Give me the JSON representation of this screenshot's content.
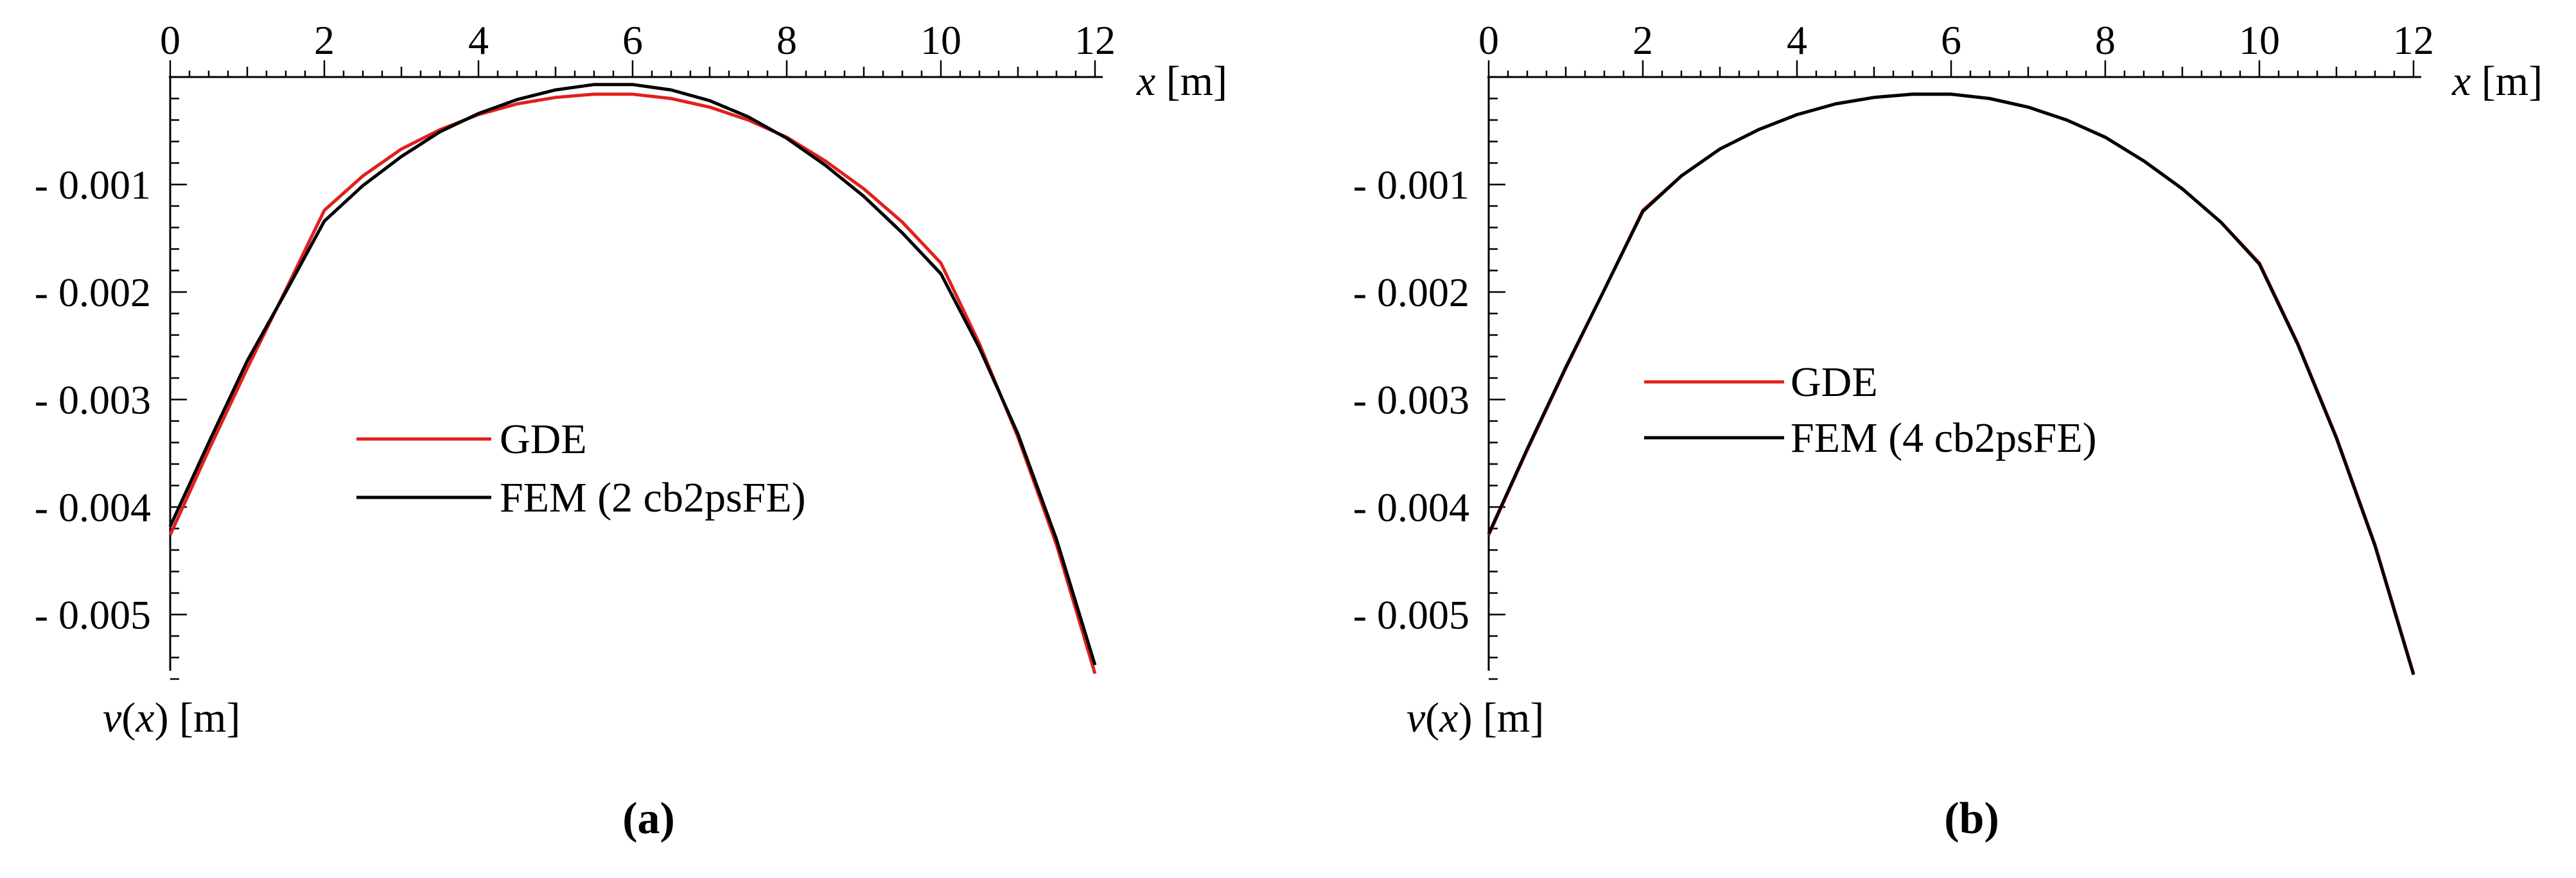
{
  "figure": {
    "captions": [
      "(a)",
      "(b)"
    ]
  },
  "chart_data": [
    {
      "type": "line",
      "panel": "(a)",
      "xlabel": "x [m]",
      "ylabel": "v(x) [m]",
      "xlim": [
        0,
        12
      ],
      "ylim": [
        -0.0057,
        0.0001
      ],
      "x_ticks": [
        0,
        2,
        4,
        6,
        8,
        10,
        12
      ],
      "x_tick_labels": [
        "0",
        "2",
        "4",
        "6",
        "8",
        "10",
        "12"
      ],
      "y_ticks": [
        -0.001,
        -0.002,
        -0.003,
        -0.004,
        -0.005
      ],
      "y_tick_labels": [
        "- 0.001",
        "- 0.002",
        "- 0.003",
        "- 0.004",
        "- 0.005"
      ],
      "legend_position": "center",
      "series": [
        {
          "name": "GDE",
          "color": "#e0201c",
          "x": [
            0,
            0.5,
            1,
            1.5,
            2,
            2.5,
            3,
            3.5,
            4,
            4.5,
            5,
            5.5,
            6,
            6.5,
            7,
            7.5,
            8,
            8.5,
            9,
            9.5,
            10,
            10.5,
            11,
            11.5,
            12
          ],
          "y": [
            -0.00426,
            -0.00347,
            -0.00271,
            -0.00198,
            -0.00124,
            -0.00092,
            -0.00067,
            -0.00049,
            -0.00035,
            -0.00025,
            -0.00019,
            -0.00016,
            -0.00016,
            -0.0002,
            -0.00028,
            -0.0004,
            -0.00056,
            -0.00078,
            -0.00104,
            -0.00135,
            -0.00173,
            -0.00248,
            -0.00335,
            -0.00435,
            -0.00555
          ]
        },
        {
          "name": "FEM (2 cb2psFE)",
          "color": "#000000",
          "x": [
            0,
            0.5,
            1,
            1.5,
            2,
            2.5,
            3,
            3.5,
            4,
            4.5,
            5,
            5.5,
            6,
            6.5,
            7,
            7.5,
            8,
            8.5,
            9,
            9.5,
            10,
            10.5,
            11,
            11.5,
            12
          ],
          "y": [
            -0.00418,
            -0.0034,
            -0.00264,
            -0.002,
            -0.00134,
            -0.00101,
            -0.00074,
            -0.00051,
            -0.00034,
            -0.00021,
            -0.00012,
            -7e-05,
            -7e-05,
            -0.00012,
            -0.00022,
            -0.00037,
            -0.00057,
            -0.00082,
            -0.00111,
            -0.00145,
            -0.00183,
            -0.00252,
            -0.00332,
            -0.0043,
            -0.00547
          ]
        }
      ]
    },
    {
      "type": "line",
      "panel": "(b)",
      "xlabel": "x [m]",
      "ylabel": "v(x) [m]",
      "xlim": [
        0,
        12
      ],
      "ylim": [
        -0.0057,
        0.0001
      ],
      "x_ticks": [
        0,
        2,
        4,
        6,
        8,
        10,
        12
      ],
      "x_tick_labels": [
        "0",
        "2",
        "4",
        "6",
        "8",
        "10",
        "12"
      ],
      "y_ticks": [
        -0.001,
        -0.002,
        -0.003,
        -0.004,
        -0.005
      ],
      "y_tick_labels": [
        "- 0.001",
        "- 0.002",
        "- 0.003",
        "- 0.004",
        "- 0.005"
      ],
      "legend_position": "center-left",
      "series": [
        {
          "name": "GDE",
          "color": "#e0201c",
          "x": [
            0,
            0.5,
            1,
            1.5,
            2,
            2.5,
            3,
            3.5,
            4,
            4.5,
            5,
            5.5,
            6,
            6.5,
            7,
            7.5,
            8,
            8.5,
            9,
            9.5,
            10,
            10.5,
            11,
            11.5,
            12
          ],
          "y": [
            -0.00426,
            -0.00347,
            -0.00271,
            -0.00198,
            -0.00124,
            -0.00092,
            -0.00067,
            -0.00049,
            -0.00035,
            -0.00025,
            -0.00019,
            -0.00016,
            -0.00016,
            -0.0002,
            -0.00028,
            -0.0004,
            -0.00056,
            -0.00078,
            -0.00104,
            -0.00135,
            -0.00173,
            -0.00248,
            -0.00335,
            -0.00435,
            -0.00555
          ]
        },
        {
          "name": "FEM (4 cb2psFE)",
          "color": "#000000",
          "x": [
            0,
            0.5,
            1,
            1.5,
            2,
            2.5,
            3,
            3.5,
            4,
            4.5,
            5,
            5.5,
            6,
            6.5,
            7,
            7.5,
            8,
            8.5,
            9,
            9.5,
            10,
            10.5,
            11,
            11.5,
            12
          ],
          "y": [
            -0.00425,
            -0.00346,
            -0.0027,
            -0.00198,
            -0.00125,
            -0.00092,
            -0.00067,
            -0.00049,
            -0.00035,
            -0.00025,
            -0.00019,
            -0.00016,
            -0.00016,
            -0.0002,
            -0.00028,
            -0.0004,
            -0.00056,
            -0.00078,
            -0.00104,
            -0.00135,
            -0.00174,
            -0.00249,
            -0.00336,
            -0.00436,
            -0.00556
          ]
        }
      ]
    }
  ]
}
